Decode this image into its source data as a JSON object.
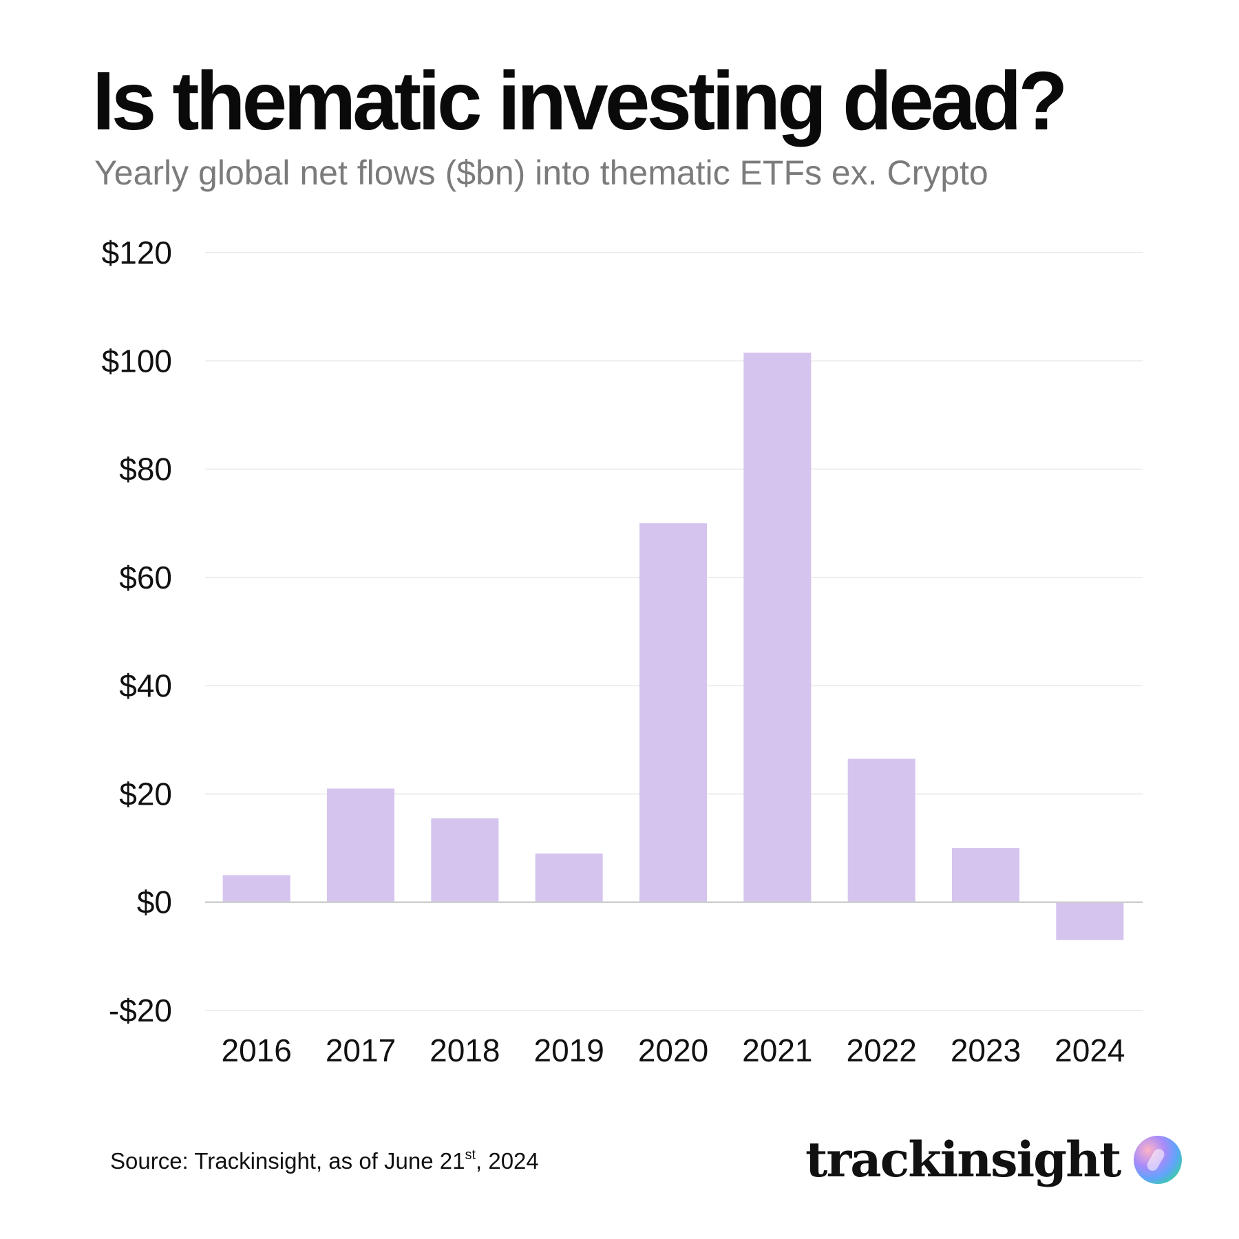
{
  "title": "Is thematic investing dead?",
  "subtitle": "Yearly global net flows ($bn) into thematic ETFs ex. Crypto",
  "source": {
    "prefix": "Source: Trackinsight, as of June 21",
    "sup": "st",
    "suffix": ", 2024"
  },
  "logo": {
    "text": "trackinsight",
    "icon": "trackinsight-orb-icon"
  },
  "colors": {
    "bar": "#d4c4ee",
    "grid": "#eeeeee",
    "zero_line": "#cfcfcf",
    "text": "#111111",
    "subtitle": "#7b7b7b"
  },
  "chart_data": {
    "type": "bar",
    "categories": [
      "2016",
      "2017",
      "2018",
      "2019",
      "2020",
      "2021",
      "2022",
      "2023",
      "2024"
    ],
    "values": [
      5,
      21,
      15.5,
      9,
      70,
      101.5,
      26.5,
      10,
      -7
    ],
    "ylim": [
      -20,
      120
    ],
    "yticks": [
      120,
      100,
      80,
      60,
      40,
      20,
      0,
      -20
    ],
    "ytick_labels": [
      "$120",
      "$100",
      "$80",
      "$60",
      "$40",
      "$20",
      "$0",
      "-$20"
    ],
    "xlabel": "",
    "ylabel": "",
    "grid": true
  }
}
